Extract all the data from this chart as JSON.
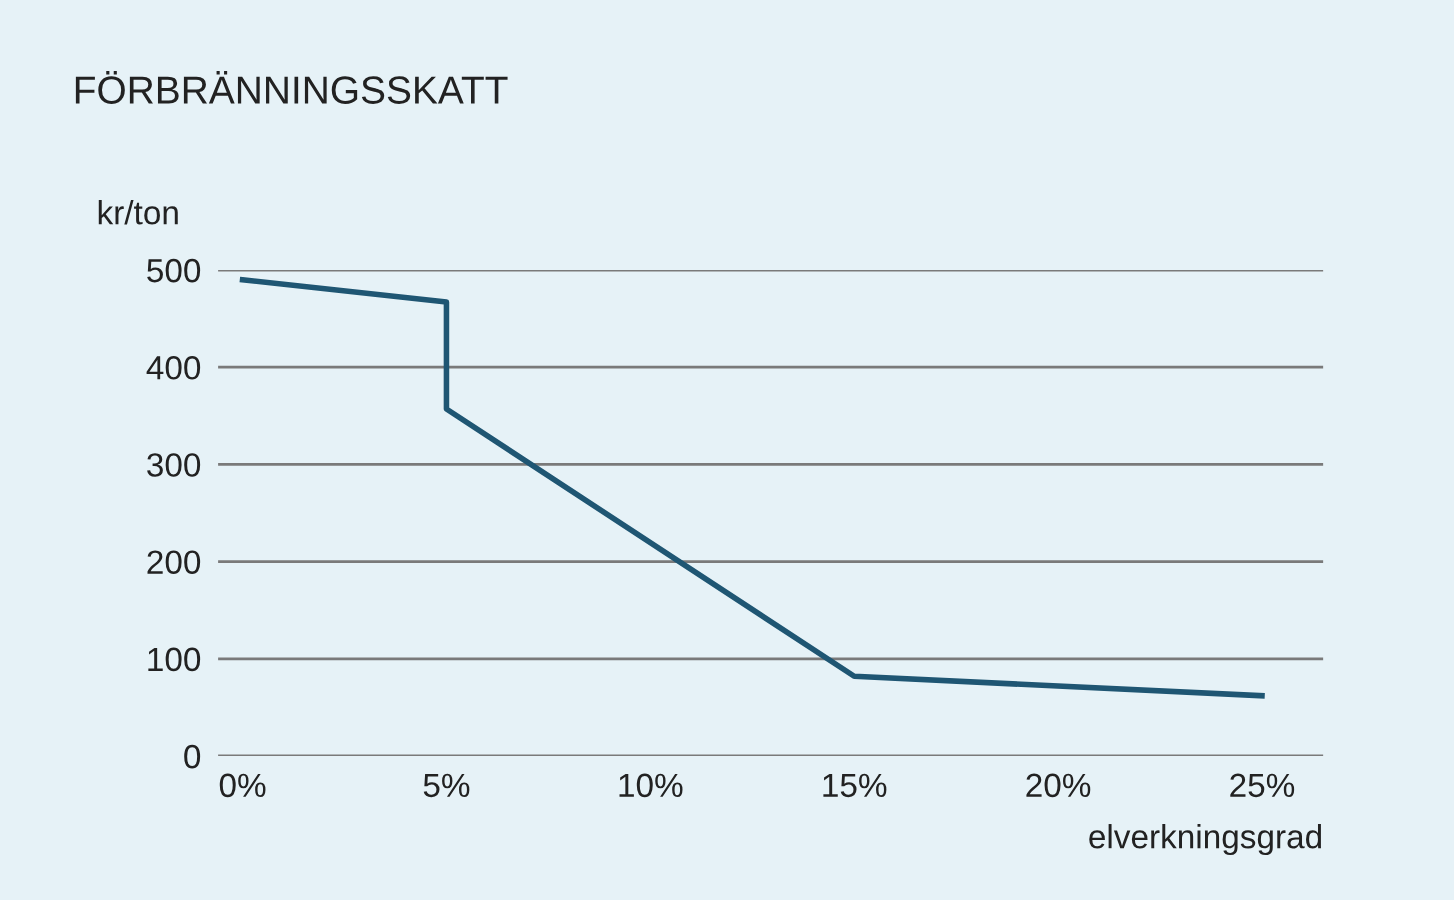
{
  "chart_data": {
    "type": "line",
    "title": "FÖRBRÄNNINGSSKATT",
    "ylabel": "kr/ton",
    "xlabel": "elverkningsgrad",
    "x": [
      0,
      5,
      5,
      15,
      25
    ],
    "series": [
      {
        "color": "#1f5673",
        "values": [
          490,
          467,
          357,
          82,
          62
        ]
      }
    ],
    "xlim": [
      -0.6,
      26.5
    ],
    "ylim": [
      0,
      500
    ],
    "xticks": [
      {
        "value": 0,
        "label": "0%"
      },
      {
        "value": 5,
        "label": "5%"
      },
      {
        "value": 10,
        "label": "10%"
      },
      {
        "value": 15,
        "label": "15%"
      },
      {
        "value": 20,
        "label": "20%"
      },
      {
        "value": 25,
        "label": "25%"
      }
    ],
    "yticks": [
      0,
      100,
      200,
      300,
      400,
      500
    ],
    "grid": "y",
    "marker": "none",
    "line_style": "solid"
  }
}
